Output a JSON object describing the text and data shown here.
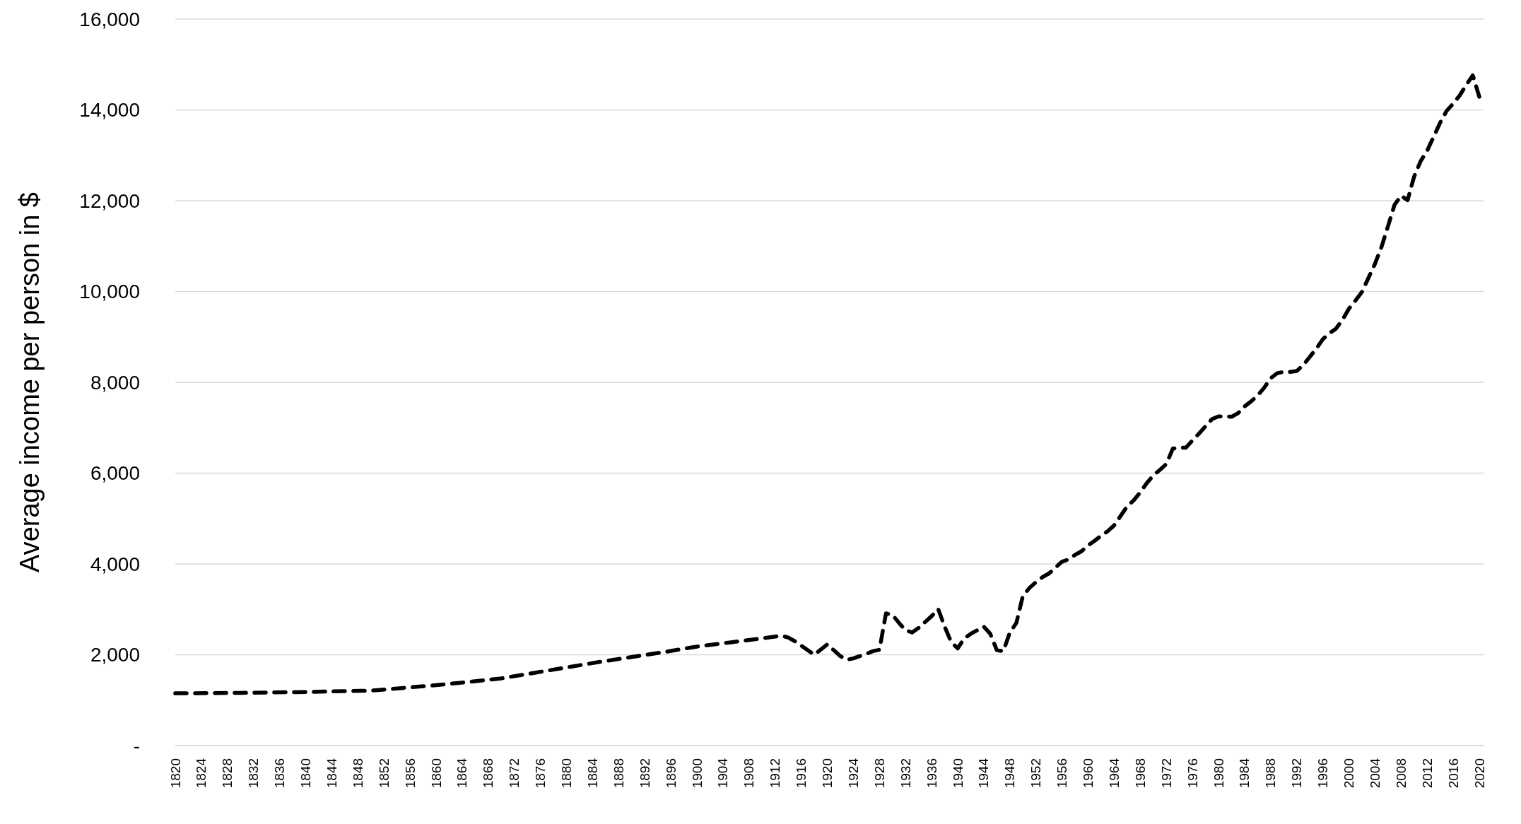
{
  "chart_data": {
    "type": "line",
    "ylabel": "Average income per person in $",
    "xlim": [
      1820,
      2020
    ],
    "xticks": [
      1820,
      1824,
      1828,
      1832,
      1836,
      1840,
      1844,
      1848,
      1852,
      1856,
      1860,
      1864,
      1868,
      1872,
      1876,
      1880,
      1884,
      1888,
      1892,
      1896,
      1900,
      1904,
      1908,
      1912,
      1916,
      1920,
      1924,
      1928,
      1932,
      1936,
      1940,
      1944,
      1948,
      1952,
      1956,
      1960,
      1964,
      1968,
      1972,
      1976,
      1980,
      1984,
      1988,
      1992,
      1996,
      2000,
      2004,
      2008,
      2012,
      2016,
      2020
    ],
    "ylim": [
      0,
      16000
    ],
    "yticks": [
      {
        "value": 0,
        "label": "-"
      },
      {
        "value": 2000,
        "label": "2,000"
      },
      {
        "value": 4000,
        "label": "4,000"
      },
      {
        "value": 6000,
        "label": "6,000"
      },
      {
        "value": 8000,
        "label": "8,000"
      },
      {
        "value": 10000,
        "label": "10,000"
      },
      {
        "value": 12000,
        "label": "12,000"
      },
      {
        "value": 14000,
        "label": "14,000"
      },
      {
        "value": 16000,
        "label": "16,000"
      }
    ],
    "grid": "y",
    "marker": "none",
    "line_style": "dashed",
    "x": [
      1820,
      1830,
      1840,
      1850,
      1855,
      1860,
      1865,
      1870,
      1875,
      1880,
      1885,
      1890,
      1895,
      1900,
      1905,
      1910,
      1913,
      1914,
      1915,
      1916,
      1917,
      1918,
      1920,
      1921,
      1922,
      1923,
      1924,
      1925,
      1926,
      1927,
      1928,
      1929,
      1930,
      1931,
      1932,
      1933,
      1934,
      1935,
      1936,
      1937,
      1938,
      1939,
      1940,
      1941,
      1942,
      1943,
      1944,
      1945,
      1946,
      1947,
      1948,
      1949,
      1950,
      1951,
      1952,
      1953,
      1954,
      1955,
      1956,
      1957,
      1958,
      1959,
      1960,
      1961,
      1962,
      1963,
      1964,
      1965,
      1966,
      1967,
      1968,
      1969,
      1970,
      1971,
      1972,
      1973,
      1974,
      1975,
      1976,
      1977,
      1978,
      1979,
      1980,
      1981,
      1982,
      1983,
      1984,
      1985,
      1986,
      1987,
      1988,
      1989,
      1990,
      1991,
      1992,
      1993,
      1994,
      1995,
      1996,
      1997,
      1998,
      1999,
      2000,
      2001,
      2002,
      2003,
      2004,
      2005,
      2006,
      2007,
      2008,
      2009,
      2010,
      2011,
      2012,
      2013,
      2014,
      2015,
      2016,
      2017,
      2018,
      2019,
      2020
    ],
    "series": [
      {
        "color": "#000000",
        "values": [
          1150,
          1160,
          1180,
          1210,
          1270,
          1330,
          1400,
          1480,
          1600,
          1720,
          1840,
          1950,
          2060,
          2180,
          2270,
          2360,
          2420,
          2380,
          2300,
          2200,
          2100,
          2000,
          2230,
          2100,
          1970,
          1890,
          1920,
          1970,
          2020,
          2080,
          2110,
          2910,
          2880,
          2700,
          2540,
          2490,
          2590,
          2720,
          2850,
          3010,
          2620,
          2280,
          2140,
          2360,
          2460,
          2540,
          2620,
          2460,
          2100,
          2080,
          2490,
          2700,
          3300,
          3470,
          3600,
          3710,
          3790,
          3920,
          4050,
          4100,
          4200,
          4280,
          4410,
          4510,
          4620,
          4720,
          4850,
          5060,
          5270,
          5400,
          5580,
          5780,
          5950,
          6070,
          6200,
          6540,
          6560,
          6560,
          6720,
          6870,
          7030,
          7190,
          7250,
          7250,
          7240,
          7320,
          7470,
          7580,
          7710,
          7880,
          8090,
          8200,
          8230,
          8230,
          8250,
          8380,
          8560,
          8740,
          8950,
          9080,
          9180,
          9370,
          9620,
          9800,
          9990,
          10300,
          10610,
          10980,
          11440,
          11910,
          12110,
          12010,
          12530,
          12870,
          13100,
          13410,
          13720,
          13980,
          14140,
          14320,
          14550,
          14760,
          14290
        ]
      }
    ]
  }
}
